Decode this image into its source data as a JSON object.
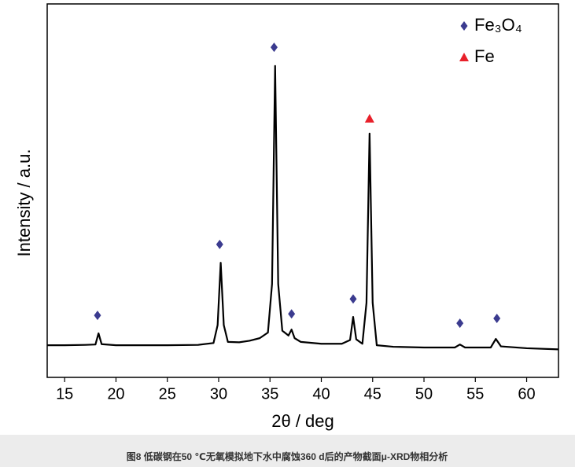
{
  "chart_data": {
    "type": "line",
    "xlabel": "2θ / deg",
    "ylabel": "Intensity / a.u.",
    "x": [
      13.3,
      15,
      17,
      18.0,
      18.3,
      18.6,
      20,
      25,
      28,
      29.5,
      29.9,
      30.2,
      30.5,
      30.9,
      32,
      33,
      34,
      34.8,
      35.2,
      35.5,
      35.8,
      36.2,
      36.8,
      37.1,
      37.4,
      38,
      40,
      42,
      42.8,
      43.1,
      43.4,
      44.0,
      44.4,
      44.7,
      45.0,
      45.4,
      47,
      50,
      53,
      53.5,
      54,
      56.5,
      57.0,
      57.5,
      60,
      63.1
    ],
    "series": [
      {
        "color": "#000000",
        "values": [
          8.6,
          8.6,
          8.7,
          8.8,
          11.8,
          8.9,
          8.6,
          8.6,
          8.7,
          9.2,
          14,
          30.7,
          14,
          9.5,
          9.4,
          9.8,
          10.5,
          12,
          25,
          83.4,
          25,
          12.5,
          11.2,
          12.8,
          10.5,
          9.5,
          9,
          9,
          10,
          16.2,
          10.2,
          9,
          20,
          65.3,
          20,
          8.6,
          8.2,
          8,
          8,
          8.8,
          8,
          8,
          10.3,
          8.3,
          7.8,
          7.5
        ]
      }
    ],
    "markers": [
      {
        "name": "Fe₃O₄",
        "color": "#3b3b8f",
        "shape": "diamond",
        "x": [
          18.2,
          30.1,
          35.4,
          37.1,
          43.1,
          53.5,
          57.1
        ],
        "values": [
          16.6,
          35.6,
          88.4,
          17,
          21,
          14.5,
          15.8
        ]
      },
      {
        "name": "Fe",
        "color": "#e8202a",
        "shape": "triangle",
        "x": [
          44.7
        ],
        "values": [
          69.3
        ]
      }
    ],
    "xlim": [
      13.3,
      63.1
    ],
    "xticks": [
      15,
      20,
      25,
      30,
      35,
      40,
      45,
      50,
      55,
      60
    ],
    "ylim": [
      0,
      100
    ],
    "legend": "upper right"
  },
  "caption": "图8   低碳钢在50 ℃无氧模拟地下水中腐蚀360 d后的产物截面μ-XRD物相分析"
}
